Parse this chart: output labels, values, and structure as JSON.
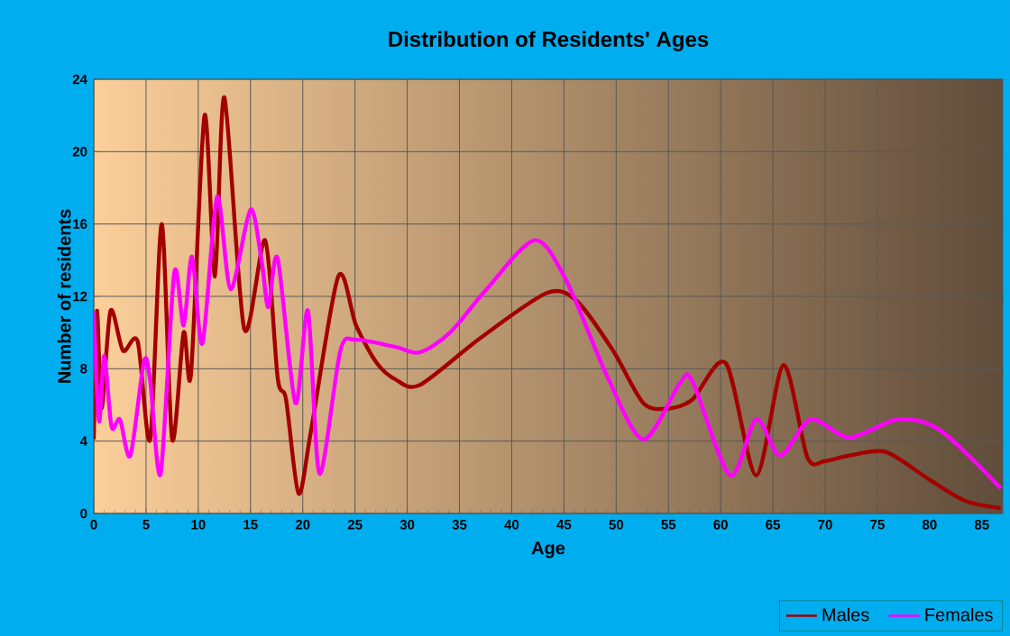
{
  "chart_data": {
    "type": "line",
    "title": "Distribution of Residents' Ages",
    "xlabel": "Age",
    "ylabel": "Number of residents",
    "xlim": [
      0,
      87
    ],
    "ylim": [
      0,
      24
    ],
    "xticks": [
      0,
      5,
      10,
      15,
      20,
      25,
      30,
      35,
      40,
      45,
      50,
      55,
      60,
      65,
      70,
      75,
      80,
      85
    ],
    "yticks": [
      0,
      4,
      8,
      12,
      16,
      20,
      24
    ],
    "grid": true,
    "legend": "bottom right",
    "line_style": "solid",
    "marker": "none",
    "series": [
      {
        "name": "Males",
        "color": "#a30000",
        "x": [
          0,
          0.3,
          0.75,
          1.6,
          2.8,
          4.2,
          5.4,
          6.5,
          7.5,
          8.6,
          9.3,
          10.6,
          11.6,
          12.5,
          14.4,
          16.4,
          17.6,
          18.4,
          19.6,
          20.8,
          23.4,
          25.1,
          27.1,
          28.9,
          31.2,
          37,
          43.4,
          46.3,
          49.7,
          52.6,
          55,
          57.3,
          60.5,
          63.4,
          66,
          68.3,
          70,
          72.3,
          75.8,
          79.9,
          83.4,
          86.8
        ],
        "values": [
          4.1,
          11.2,
          5.8,
          11.2,
          9,
          9.5,
          4.1,
          16,
          4.1,
          10,
          7.7,
          22,
          13.1,
          23,
          10.2,
          15.1,
          7.5,
          6.3,
          1.1,
          4.6,
          13.1,
          10.4,
          8.3,
          7.4,
          7.1,
          9.7,
          12.2,
          11.7,
          9,
          6.1,
          5.8,
          6.3,
          8.3,
          2.1,
          8.2,
          3.1,
          2.9,
          3.2,
          3.4,
          1.9,
          0.7,
          0.3
        ]
      },
      {
        "name": "Females",
        "color": "#ff00ff",
        "x": [
          0,
          0.5,
          1,
          1.7,
          2.5,
          3.5,
          4.8,
          5.4,
          6.4,
          7.7,
          8.6,
          9.4,
          10.4,
          11.8,
          13.1,
          15,
          16.1,
          16.7,
          17.6,
          19.3,
          20.5,
          21.6,
          23.6,
          25.1,
          28.9,
          31.2,
          34.1,
          37.6,
          42.2,
          45.2,
          49.2,
          52.6,
          56.1,
          57.3,
          60.9,
          63.4,
          65.7,
          68.6,
          72.3,
          77,
          81,
          86.8
        ],
        "values": [
          11.2,
          5.1,
          8.7,
          4.8,
          5.2,
          3.2,
          8.4,
          7.3,
          2.2,
          13.3,
          10.4,
          14.2,
          9.4,
          17.5,
          12.4,
          16.8,
          13.8,
          11.4,
          14.1,
          6.1,
          11.2,
          2.2,
          9,
          9.6,
          9.2,
          8.9,
          10,
          12.4,
          15.1,
          12.9,
          7.5,
          4.1,
          7.2,
          7.3,
          2.1,
          5.2,
          3.2,
          5.2,
          4.2,
          5.2,
          4.6,
          1.4
        ]
      }
    ]
  }
}
